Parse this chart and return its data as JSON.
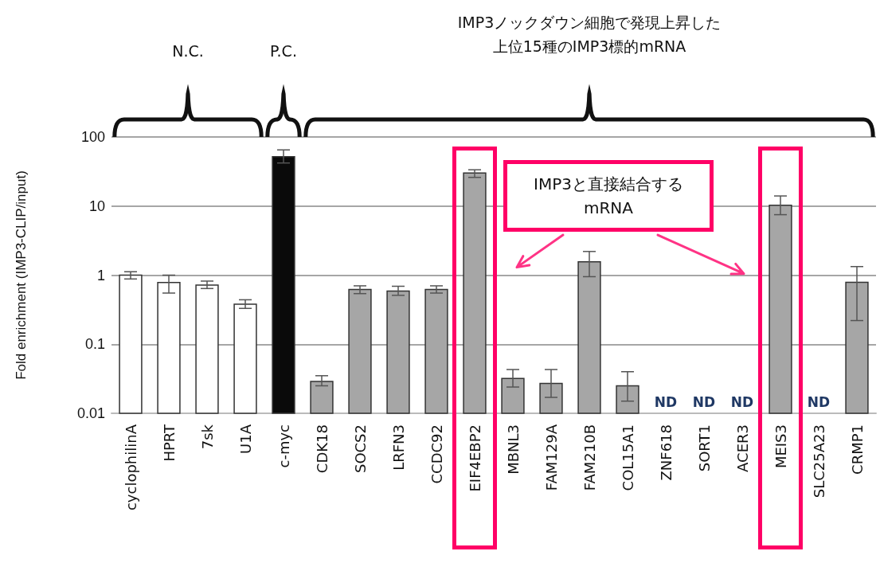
{
  "chart_data": {
    "type": "bar",
    "ylabel": "Fold enrichment (IMP3-CLIP/input)",
    "categories": [
      "cyclophilinA",
      "HPRT",
      "7sk",
      "U1A",
      "c-myc",
      "CDK18",
      "SOCS2",
      "LRFN3",
      "CCDC92",
      "EIF4EBP2",
      "MBNL3",
      "FAM129A",
      "FAM210B",
      "COL15A1",
      "ZNF618",
      "SORT1",
      "ACER3",
      "MEIS3",
      "SLC25A23",
      "CRMP1"
    ],
    "values": [
      1.0,
      0.78,
      0.72,
      0.38,
      52,
      0.029,
      0.62,
      0.59,
      0.62,
      30,
      0.032,
      0.027,
      1.56,
      0.025,
      null,
      null,
      null,
      10.3,
      null,
      0.79
    ],
    "colors": [
      "#ffffff",
      "#ffffff",
      "#ffffff",
      "#ffffff",
      "#0a0a0a",
      "#a6a6a6",
      "#a6a6a6",
      "#a6a6a6",
      "#a6a6a6",
      "#a6a6a6",
      "#a6a6a6",
      "#a6a6a6",
      "#a6a6a6",
      "#a6a6a6",
      null,
      null,
      null,
      "#a6a6a6",
      null,
      "#a6a6a6"
    ],
    "errors": [
      [
        0.88,
        1.12
      ],
      [
        0.55,
        1.0
      ],
      [
        0.64,
        0.82
      ],
      [
        0.33,
        0.44
      ],
      [
        42,
        65
      ],
      [
        0.025,
        0.035
      ],
      [
        0.54,
        0.7
      ],
      [
        0.51,
        0.69
      ],
      [
        0.55,
        0.7
      ],
      [
        26,
        33.5
      ],
      [
        0.024,
        0.043
      ],
      [
        0.017,
        0.043
      ],
      [
        0.95,
        2.2
      ],
      [
        0.015,
        0.04
      ],
      null,
      null,
      null,
      [
        7.5,
        14
      ],
      null,
      [
        0.22,
        1.33
      ]
    ],
    "value_labels": [
      null,
      null,
      null,
      null,
      null,
      null,
      null,
      null,
      null,
      null,
      null,
      null,
      null,
      null,
      "ND",
      "ND",
      "ND",
      null,
      "ND",
      null
    ],
    "log": true,
    "ylim": [
      0.01,
      100
    ],
    "yticks": [
      0.01,
      0.1,
      1,
      10,
      100
    ],
    "grid": "y",
    "annotations": [
      "N.C.",
      "P.C.",
      "IMP3ノックダウン細胞で発現上昇した",
      "上位15種のIMP3標的mRNA",
      "IMP3と直接結合するmRNA"
    ]
  }
}
